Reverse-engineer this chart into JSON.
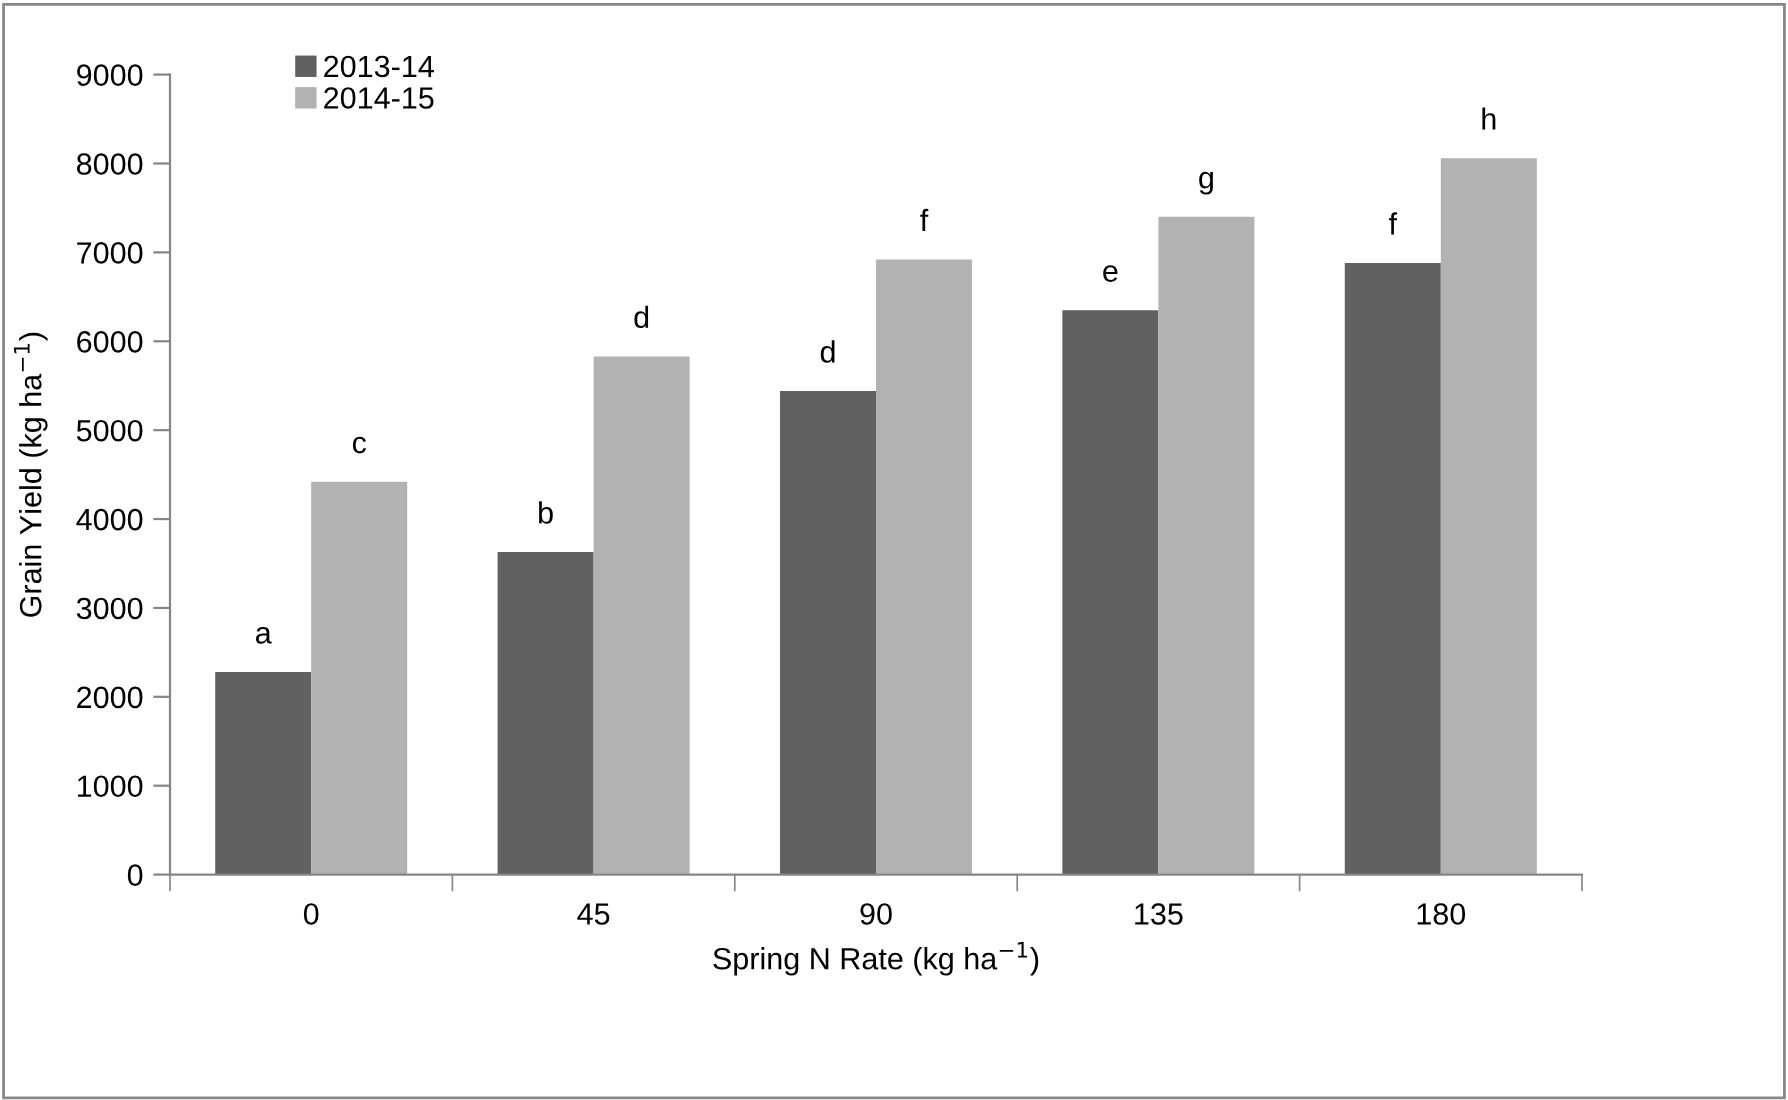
{
  "chart_data": {
    "type": "bar",
    "xlabel": "Spring N Rate (kg ha$^{−1}$)",
    "ylabel": "Grain Yield (kg ha$^{−1}$)",
    "categories": [
      "0",
      "45",
      "90",
      "135",
      "180"
    ],
    "series": [
      {
        "name": "2013-14",
        "color": "#616161",
        "values": [
          2280,
          3630,
          5440,
          6350,
          6880
        ]
      },
      {
        "name": "2014-15",
        "color": "#b2b2b2",
        "values": [
          4420,
          5830,
          6920,
          7400,
          8060
        ]
      }
    ],
    "ylim": [
      0,
      9000
    ],
    "yticks": [
      0,
      1000,
      2000,
      3000,
      4000,
      5000,
      6000,
      7000,
      8000,
      9000
    ],
    "grid": false,
    "legend": "top left",
    "annotations": [
      {
        "text": "a",
        "x": "0",
        "y": 2280
      },
      {
        "text": "c",
        "x": "0",
        "y": 4420
      },
      {
        "text": "b",
        "x": "45",
        "y": 3630
      },
      {
        "text": "d",
        "x": "45",
        "y": 5830
      },
      {
        "text": "d",
        "x": "90",
        "y": 5440
      },
      {
        "text": "f",
        "x": "90",
        "y": 6920
      },
      {
        "text": "e",
        "x": "135",
        "y": 6350
      },
      {
        "text": "g",
        "x": "135",
        "y": 7400
      },
      {
        "text": "f",
        "x": "180",
        "y": 6880
      },
      {
        "text": "h",
        "x": "180",
        "y": 8060
      }
    ]
  }
}
